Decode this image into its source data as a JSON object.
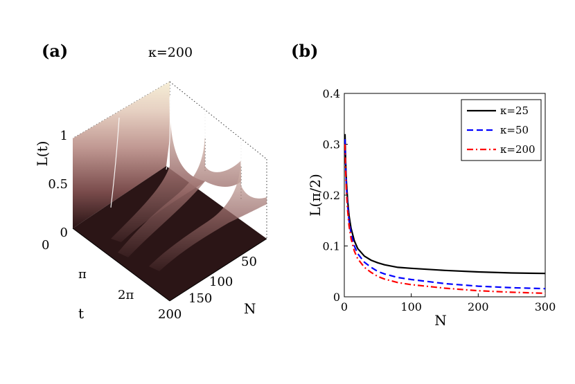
{
  "chart_data": [
    {
      "panel": "(a)",
      "type": "surface3d",
      "title": "κ=200",
      "xlabel": "t",
      "ylabel": "N",
      "zlabel": "L(t)",
      "t_ticks": [
        "0",
        "π",
        "2π"
      ],
      "n_ticks": [
        "50",
        "100",
        "150",
        "200"
      ],
      "z_ticks": [
        "0",
        "0.5",
        "1"
      ],
      "t_range": [
        0,
        7
      ],
      "n_range": [
        1,
        200
      ],
      "z_range": [
        0,
        1
      ],
      "colormap": [
        "#2a1415",
        "#5b3535",
        "#8f6260",
        "#c09892",
        "#e0c5bb",
        "#f4ead2"
      ]
    },
    {
      "panel": "(b)",
      "type": "line",
      "xlabel": "N",
      "ylabel": "L(π/2)",
      "xlim": [
        0,
        300
      ],
      "ylim": [
        0,
        0.4
      ],
      "x_ticks": [
        "0",
        "100",
        "200",
        "300"
      ],
      "y_ticks": [
        "0",
        "0.1",
        "0.2",
        "0.3",
        "0.4"
      ],
      "legend_position": "top-right",
      "series": [
        {
          "name": "κ=25",
          "color": "#000000",
          "dash": "solid",
          "x": [
            1,
            2,
            3,
            5,
            7,
            10,
            15,
            20,
            30,
            40,
            50,
            60,
            80,
            100,
            150,
            200,
            250,
            300
          ],
          "y": [
            0.32,
            0.27,
            0.23,
            0.19,
            0.16,
            0.135,
            0.11,
            0.095,
            0.08,
            0.072,
            0.067,
            0.063,
            0.058,
            0.056,
            0.052,
            0.049,
            0.047,
            0.046
          ]
        },
        {
          "name": "κ=50",
          "color": "#0000ff",
          "dash": "dashed",
          "x": [
            1,
            2,
            3,
            5,
            7,
            10,
            15,
            20,
            30,
            40,
            50,
            60,
            80,
            100,
            150,
            200,
            250,
            300
          ],
          "y": [
            0.31,
            0.26,
            0.22,
            0.18,
            0.15,
            0.125,
            0.1,
            0.085,
            0.068,
            0.058,
            0.05,
            0.045,
            0.038,
            0.034,
            0.026,
            0.021,
            0.018,
            0.016
          ]
        },
        {
          "name": "κ=200",
          "color": "#ff0000",
          "dash": "dashdot",
          "x": [
            1,
            2,
            3,
            5,
            7,
            10,
            15,
            20,
            30,
            40,
            50,
            60,
            80,
            100,
            150,
            200,
            250,
            300
          ],
          "y": [
            0.3,
            0.25,
            0.21,
            0.17,
            0.14,
            0.115,
            0.09,
            0.075,
            0.058,
            0.048,
            0.04,
            0.035,
            0.028,
            0.024,
            0.017,
            0.012,
            0.009,
            0.007
          ]
        }
      ]
    }
  ]
}
